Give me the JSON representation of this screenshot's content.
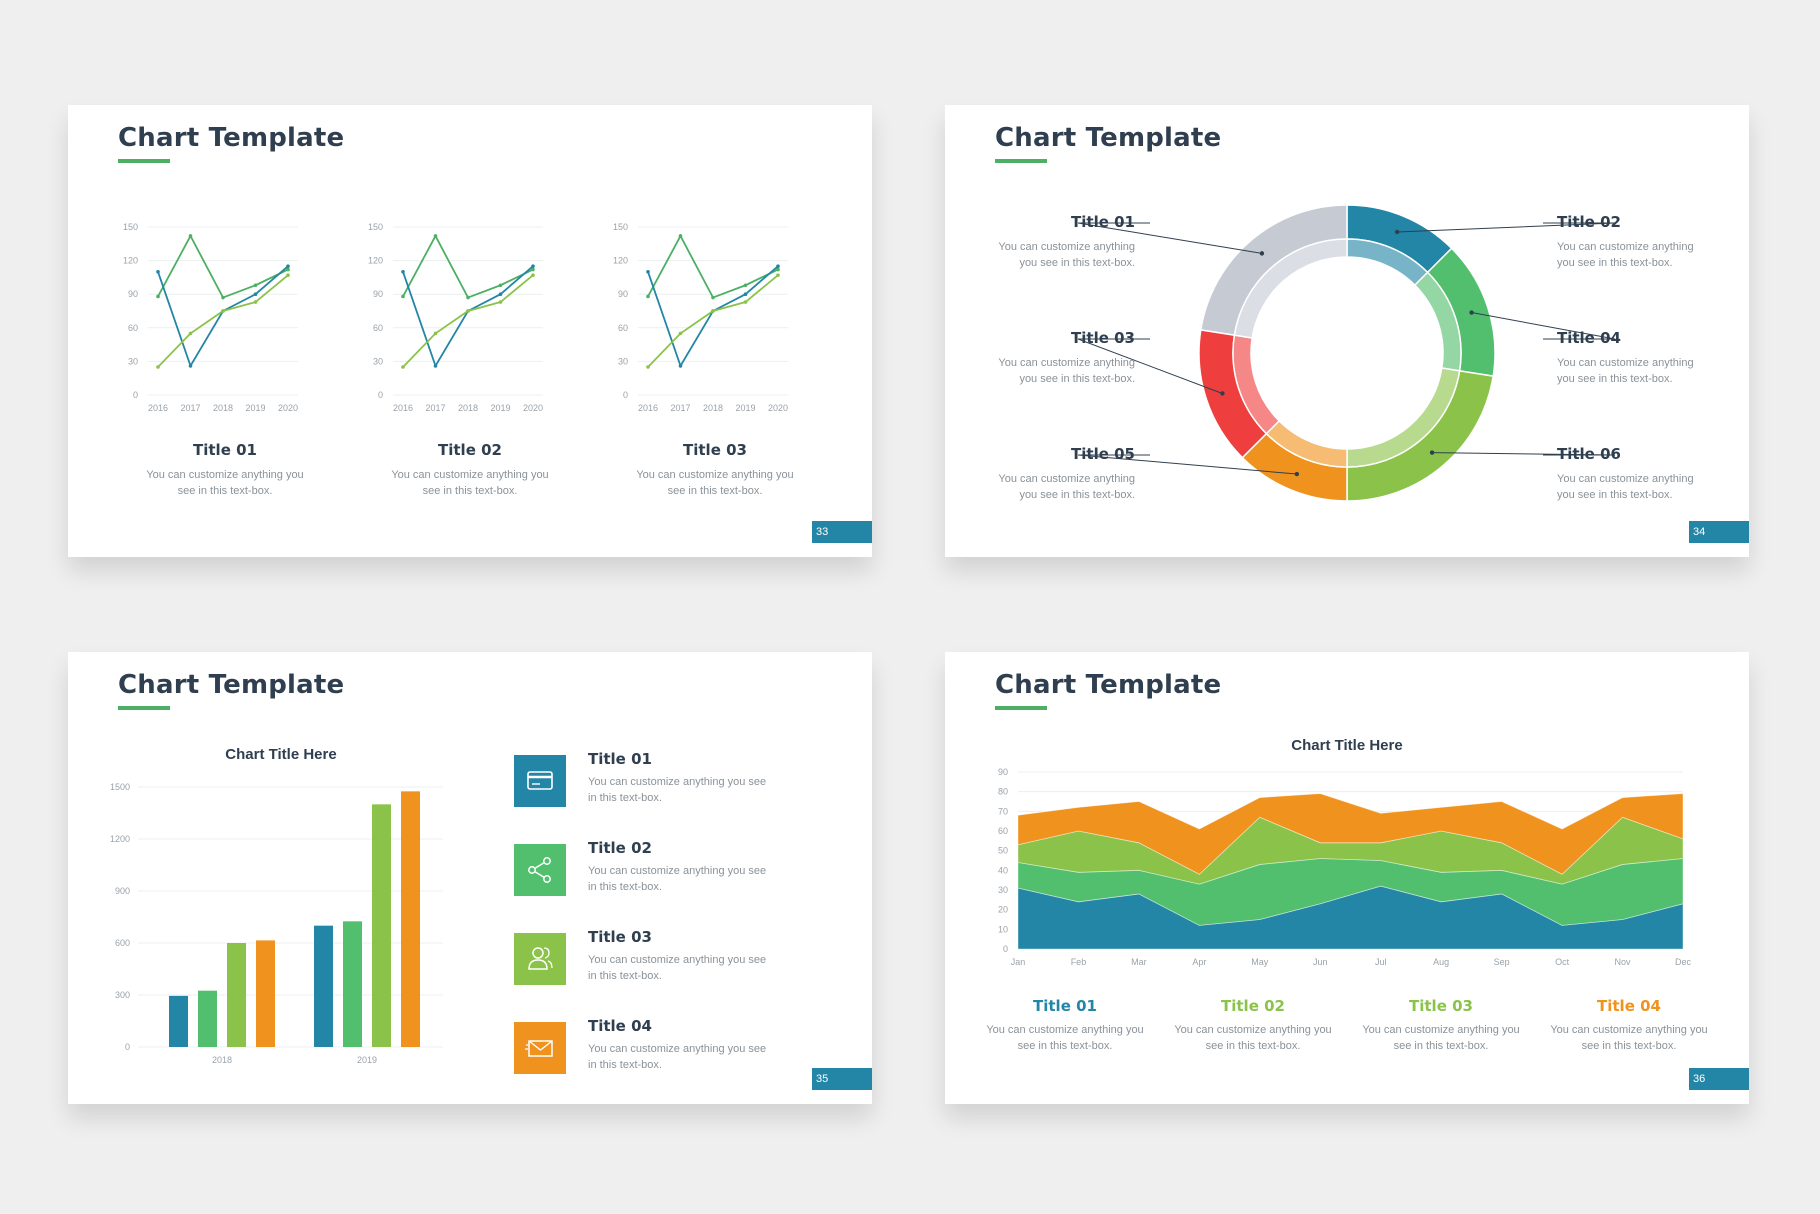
{
  "slides": [
    {
      "title": "Chart Template",
      "page": "33",
      "captions": [
        {
          "title": "Title 01",
          "text": "You can customize anything you see in this text-box."
        },
        {
          "title": "Title 02",
          "text": "You can customize anything you see in this text-box."
        },
        {
          "title": "Title 03",
          "text": "You can customize anything you see in this text-box."
        }
      ]
    },
    {
      "title": "Chart Template",
      "page": "34",
      "labels": [
        {
          "title": "Title 01",
          "text": "You can customize anything you see in this text-box."
        },
        {
          "title": "Title 02",
          "text": "You can customize anything you see in this text-box."
        },
        {
          "title": "Title 03",
          "text": "You can customize anything you see in this text-box."
        },
        {
          "title": "Title 04",
          "text": "You can customize anything you see in this text-box."
        },
        {
          "title": "Title 05",
          "text": "You can customize anything you see in this text-box."
        },
        {
          "title": "Title 06",
          "text": "You can customize anything you see in this text-box."
        }
      ]
    },
    {
      "title": "Chart Template",
      "page": "35",
      "items": [
        {
          "title": "Title 01",
          "text": "You can customize anything you see in this text-box.",
          "icon": "credit-card-icon",
          "color": "#2386a6"
        },
        {
          "title": "Title 02",
          "text": "You can customize anything you see in this text-box.",
          "icon": "share-icon",
          "color": "#52bf6e"
        },
        {
          "title": "Title 03",
          "text": "You can customize anything you see in this text-box.",
          "icon": "users-icon",
          "color": "#8bc34a"
        },
        {
          "title": "Title 04",
          "text": "You can customize anything you see in this text-box.",
          "icon": "envelope-icon",
          "color": "#f0931e"
        }
      ]
    },
    {
      "title": "Chart Template",
      "page": "36",
      "captions": [
        {
          "title": "Title 01",
          "text": "You can customize anything you see in this text-box.",
          "color": "#2386a6"
        },
        {
          "title": "Title 02",
          "text": "You can customize anything you see in this text-box.",
          "color": "#8bc34a"
        },
        {
          "title": "Title 03",
          "text": "You can customize anything you see in this text-box.",
          "color": "#8bc34a"
        },
        {
          "title": "Title 04",
          "text": "You can customize anything you see in this text-box.",
          "color": "#f0931e"
        }
      ]
    }
  ],
  "chart_data": [
    {
      "type": "line",
      "x": [
        "2016",
        "2017",
        "2018",
        "2019",
        "2020"
      ],
      "ylim": [
        0,
        150
      ],
      "yticks": [
        0,
        30,
        60,
        90,
        120,
        150
      ],
      "grid": true,
      "series": [
        {
          "color": "#4caf63",
          "values": [
            88,
            142,
            87,
            98,
            112
          ]
        },
        {
          "color": "#2386a6",
          "values": [
            110,
            26,
            75,
            90,
            115
          ]
        },
        {
          "color": "#8bc34a",
          "values": [
            25,
            55,
            75,
            83,
            107
          ]
        }
      ]
    },
    {
      "type": "line",
      "x": [
        "2016",
        "2017",
        "2018",
        "2019",
        "2020"
      ],
      "ylim": [
        0,
        150
      ],
      "yticks": [
        0,
        30,
        60,
        90,
        120,
        150
      ],
      "grid": true,
      "series": [
        {
          "color": "#4caf63",
          "values": [
            88,
            142,
            87,
            98,
            112
          ]
        },
        {
          "color": "#2386a6",
          "values": [
            110,
            26,
            75,
            90,
            115
          ]
        },
        {
          "color": "#8bc34a",
          "values": [
            25,
            55,
            75,
            83,
            107
          ]
        }
      ]
    },
    {
      "type": "line",
      "x": [
        "2016",
        "2017",
        "2018",
        "2019",
        "2020"
      ],
      "ylim": [
        0,
        150
      ],
      "yticks": [
        0,
        30,
        60,
        90,
        120,
        150
      ],
      "grid": true,
      "series": [
        {
          "color": "#4caf63",
          "values": [
            88,
            142,
            87,
            98,
            112
          ]
        },
        {
          "color": "#2386a6",
          "values": [
            110,
            26,
            75,
            90,
            115
          ]
        },
        {
          "color": "#8bc34a",
          "values": [
            25,
            55,
            75,
            83,
            107
          ]
        }
      ]
    },
    {
      "type": "pie",
      "donut": true,
      "slices": [
        {
          "label": "Title 02",
          "value": 12.5,
          "color": "#2386a6"
        },
        {
          "label": "Title 04",
          "value": 15,
          "color": "#52bf6e"
        },
        {
          "label": "Title 06",
          "value": 22.5,
          "color": "#8bc34a"
        },
        {
          "label": "Title 05",
          "value": 12.5,
          "color": "#f0931e"
        },
        {
          "label": "Title 03",
          "value": 15,
          "color": "#ef3e3e"
        },
        {
          "label": "Title 01",
          "value": 22.5,
          "color": "#c5cad3"
        }
      ]
    },
    {
      "type": "bar",
      "title": "Chart Title Here",
      "categories": [
        "2018",
        "2019"
      ],
      "ylim": [
        0,
        1500
      ],
      "yticks": [
        0,
        300,
        600,
        900,
        1200,
        1500
      ],
      "grid": true,
      "series": [
        {
          "color": "#2386a6",
          "values": [
            295,
            700
          ]
        },
        {
          "color": "#52bf6e",
          "values": [
            325,
            725
          ]
        },
        {
          "color": "#8bc34a",
          "values": [
            600,
            1400
          ]
        },
        {
          "color": "#f0931e",
          "values": [
            615,
            1475
          ]
        }
      ]
    },
    {
      "type": "area",
      "stacked": true,
      "title": "Chart Title Here",
      "x": [
        "Jan",
        "Feb",
        "Mar",
        "Apr",
        "May",
        "Jun",
        "Jul",
        "Aug",
        "Sep",
        "Oct",
        "Nov",
        "Dec"
      ],
      "ylim": [
        0,
        90
      ],
      "yticks": [
        0,
        10,
        20,
        30,
        40,
        50,
        60,
        70,
        80,
        90
      ],
      "grid": true,
      "series": [
        {
          "color": "#2386a6",
          "values": [
            31,
            24,
            28,
            12,
            15,
            23,
            32,
            24,
            28,
            12,
            15,
            23
          ]
        },
        {
          "color": "#52bf6e",
          "values": [
            13,
            15,
            12,
            21,
            28,
            23,
            13,
            15,
            12,
            21,
            28,
            23
          ]
        },
        {
          "color": "#8bc34a",
          "values": [
            9,
            21,
            14,
            5,
            24,
            8,
            9,
            21,
            14,
            5,
            24,
            10
          ]
        },
        {
          "color": "#f0931e",
          "values": [
            15,
            12,
            21,
            23,
            10,
            25,
            15,
            12,
            21,
            23,
            10,
            23
          ]
        }
      ]
    }
  ]
}
